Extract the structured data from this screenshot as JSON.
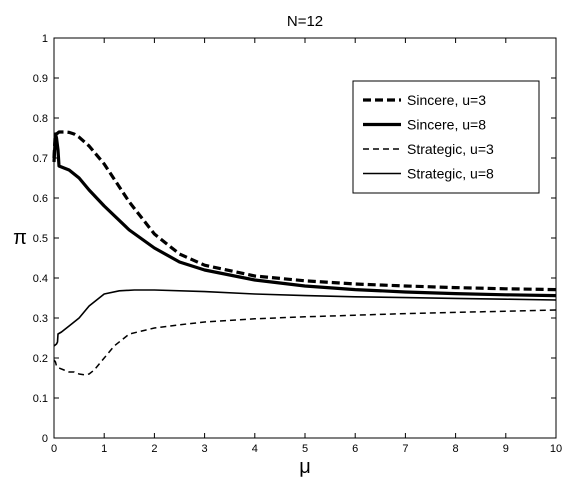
{
  "chart_data": {
    "type": "line",
    "title": "N=12",
    "xlabel": "μ",
    "ylabel": "π",
    "xlim": [
      0,
      10
    ],
    "ylim": [
      0,
      1
    ],
    "x_ticks": [
      "0",
      "1",
      "2",
      "3",
      "4",
      "5",
      "6",
      "7",
      "8",
      "9",
      "10"
    ],
    "y_ticks": [
      "0",
      "0.1",
      "0.2",
      "0.3",
      "0.4",
      "0.5",
      "0.6",
      "0.7",
      "0.8",
      "0.9",
      "1"
    ],
    "grid": false,
    "legend_position": "top-right",
    "series": [
      {
        "name": "Sincere, u=3",
        "style": "dashed-thick",
        "x": [
          0,
          0.02,
          0.05,
          0.1,
          0.2,
          0.3,
          0.4,
          0.5,
          0.7,
          1.0,
          1.5,
          2.0,
          2.5,
          3.0,
          4.0,
          5.0,
          6.0,
          7.0,
          8.0,
          9.0,
          10.0
        ],
        "y": [
          0.7,
          0.75,
          0.76,
          0.765,
          0.765,
          0.764,
          0.76,
          0.752,
          0.73,
          0.685,
          0.59,
          0.51,
          0.46,
          0.432,
          0.405,
          0.393,
          0.385,
          0.38,
          0.376,
          0.373,
          0.371
        ]
      },
      {
        "name": "Sincere, u=8",
        "style": "solid-thick",
        "x": [
          0,
          0.03,
          0.05,
          0.08,
          0.1,
          0.2,
          0.3,
          0.5,
          0.7,
          1.0,
          1.5,
          2.0,
          2.5,
          3.0,
          4.0,
          5.0,
          6.0,
          7.0,
          8.0,
          9.0,
          10.0
        ],
        "y": [
          0.69,
          0.76,
          0.75,
          0.72,
          0.68,
          0.675,
          0.67,
          0.65,
          0.62,
          0.58,
          0.52,
          0.475,
          0.44,
          0.42,
          0.395,
          0.38,
          0.371,
          0.365,
          0.361,
          0.358,
          0.356
        ]
      },
      {
        "name": "Strategic, u=3",
        "style": "dashed-thin",
        "x": [
          0,
          0.03,
          0.05,
          0.1,
          0.2,
          0.3,
          0.4,
          0.5,
          0.6,
          0.7,
          0.8,
          1.0,
          1.2,
          1.5,
          2.0,
          2.5,
          3.0,
          4.0,
          5.0,
          6.0,
          7.0,
          8.0,
          9.0,
          10.0
        ],
        "y": [
          0.195,
          0.19,
          0.18,
          0.175,
          0.17,
          0.165,
          0.165,
          0.16,
          0.158,
          0.16,
          0.17,
          0.2,
          0.23,
          0.26,
          0.275,
          0.283,
          0.29,
          0.298,
          0.303,
          0.307,
          0.311,
          0.314,
          0.317,
          0.32
        ]
      },
      {
        "name": "Strategic, u=8",
        "style": "solid-thin",
        "x": [
          0,
          0.05,
          0.07,
          0.08,
          0.15,
          0.2,
          0.3,
          0.5,
          0.7,
          1.0,
          1.3,
          1.6,
          2.0,
          3.0,
          4.0,
          5.0,
          6.0,
          7.0,
          8.0,
          9.0,
          10.0
        ],
        "y": [
          0.23,
          0.235,
          0.24,
          0.26,
          0.265,
          0.27,
          0.28,
          0.3,
          0.33,
          0.36,
          0.368,
          0.37,
          0.37,
          0.366,
          0.36,
          0.356,
          0.353,
          0.351,
          0.349,
          0.347,
          0.345
        ]
      }
    ]
  }
}
